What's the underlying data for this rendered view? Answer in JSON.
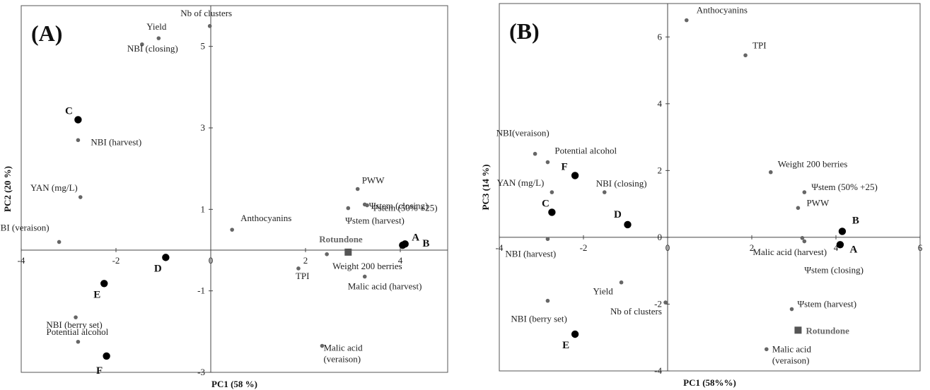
{
  "chart_data": [
    {
      "panel": "(A)",
      "type": "scatter",
      "xlabel": "PC1 (58 %)",
      "ylabel": "PC2 (20 %)",
      "xlim": [
        -4,
        5
      ],
      "ylim": [
        -3,
        6
      ],
      "xticks": [
        {
          "v": -4,
          "t": "-4"
        },
        {
          "v": -2,
          "t": "-2"
        },
        {
          "v": 0,
          "t": "0"
        },
        {
          "v": 2,
          "t": "2"
        },
        {
          "v": 4,
          "t": "4"
        }
      ],
      "yticks": [
        {
          "v": -3,
          "t": "-3"
        },
        {
          "v": -1,
          "t": "-1"
        },
        {
          "v": 1,
          "t": "1"
        },
        {
          "v": 3,
          "t": "3"
        },
        {
          "v": 5,
          "t": "5"
        }
      ],
      "variables": [
        {
          "name": "Nb of clusters",
          "x": -0.02,
          "y": 5.5
        },
        {
          "name": "Yield",
          "x": -1.1,
          "y": 5.2
        },
        {
          "name": "NBI (closing)",
          "x": -1.45,
          "y": 5.05
        },
        {
          "name": "NBI (harvest)",
          "x": -2.8,
          "y": 2.7
        },
        {
          "name": "YAN (mg/L)",
          "x": -2.75,
          "y": 1.3
        },
        {
          "name": "NBI (veraison)",
          "x": -3.2,
          "y": 0.2
        },
        {
          "name": "NBI (berry set)",
          "x": -2.85,
          "y": -1.65
        },
        {
          "name": "Potential alcohol",
          "x": -2.8,
          "y": -2.25
        },
        {
          "name": "Anthocyanins",
          "x": 0.45,
          "y": 0.5
        },
        {
          "name": "PWW",
          "x": 3.1,
          "y": 1.5
        },
        {
          "name": "Ψstem (closing)",
          "x": 3.25,
          "y": 1.12
        },
        {
          "name": "Ψstem (50% +25)",
          "x": 3.3,
          "y": 1.1
        },
        {
          "name": "Ψstem (harvest)",
          "x": 2.9,
          "y": 1.03
        },
        {
          "name": "Weight 200 berries",
          "x": 2.45,
          "y": -0.1
        },
        {
          "name": "TPI",
          "x": 1.85,
          "y": -0.45
        },
        {
          "name": "Malic acid (harvest)",
          "x": 3.25,
          "y": -0.65
        },
        {
          "name": "Malic acid (veraison)",
          "x": 2.35,
          "y": -2.35
        }
      ],
      "observations": [
        {
          "name": "A",
          "x": 4.1,
          "y": 0.15
        },
        {
          "name": "B",
          "x": 4.05,
          "y": 0.12
        },
        {
          "name": "C",
          "x": -2.8,
          "y": 3.2
        },
        {
          "name": "D",
          "x": -0.95,
          "y": -0.18
        },
        {
          "name": "E",
          "x": -2.25,
          "y": -0.82
        },
        {
          "name": "F",
          "x": -2.2,
          "y": -2.6
        }
      ],
      "supplementary": {
        "name": "Rotundone",
        "x": 2.9,
        "y": -0.05
      }
    },
    {
      "panel": "(B)",
      "type": "scatter",
      "xlabel": "PC1 (58%%)",
      "ylabel": "PC3 (14 %)",
      "xlim": [
        -4,
        6
      ],
      "ylim": [
        -4,
        7
      ],
      "xticks": [
        {
          "v": -4,
          "t": "-4"
        },
        {
          "v": -2,
          "t": "-2"
        },
        {
          "v": 0,
          "t": "0"
        },
        {
          "v": 2,
          "t": "2"
        },
        {
          "v": 4,
          "t": "4"
        },
        {
          "v": 6,
          "t": "6"
        }
      ],
      "yticks": [
        {
          "v": -4,
          "t": "-4"
        },
        {
          "v": -2,
          "t": "-2"
        },
        {
          "v": 0,
          "t": "0"
        },
        {
          "v": 2,
          "t": "2"
        },
        {
          "v": 4,
          "t": "4"
        },
        {
          "v": 6,
          "t": "6"
        }
      ],
      "variables": [
        {
          "name": "Anthocyanins",
          "x": 0.45,
          "y": 6.5
        },
        {
          "name": "TPI",
          "x": 1.85,
          "y": 5.45
        },
        {
          "name": "NBI(veraison)",
          "x": -3.15,
          "y": 2.5
        },
        {
          "name": "Potential alcohol",
          "x": -2.85,
          "y": 2.25
        },
        {
          "name": "YAN (mg/L)",
          "x": -2.75,
          "y": 1.35
        },
        {
          "name": "NBI (closing)",
          "x": -1.5,
          "y": 1.35
        },
        {
          "name": "NBI (harvest)",
          "x": -2.85,
          "y": -0.05
        },
        {
          "name": "Weight 200 berries",
          "x": 2.45,
          "y": 1.95
        },
        {
          "name": "Ψstem (50% +25)",
          "x": 3.25,
          "y": 1.35
        },
        {
          "name": "PWW",
          "x": 3.1,
          "y": 0.88
        },
        {
          "name": "Malic acid (harvest)",
          "x": 3.2,
          "y": -0.02
        },
        {
          "name": "Ψstem (closing)",
          "x": 3.25,
          "y": -0.12
        },
        {
          "name": "Yield",
          "x": -1.1,
          "y": -1.35
        },
        {
          "name": "Nb of clusters",
          "x": -0.05,
          "y": -1.95
        },
        {
          "name": "NBI (berry set)",
          "x": -2.85,
          "y": -1.9
        },
        {
          "name": "Ψstem (harvest)",
          "x": 2.95,
          "y": -2.15
        },
        {
          "name": "Malic acid (veraison)",
          "x": 2.35,
          "y": -3.35
        }
      ],
      "observations": [
        {
          "name": "A",
          "x": 4.1,
          "y": -0.22
        },
        {
          "name": "B",
          "x": 4.15,
          "y": 0.18
        },
        {
          "name": "C",
          "x": -2.75,
          "y": 0.75
        },
        {
          "name": "D",
          "x": -0.95,
          "y": 0.38
        },
        {
          "name": "E",
          "x": -2.2,
          "y": -2.9
        },
        {
          "name": "F",
          "x": -2.2,
          "y": 1.85
        }
      ],
      "supplementary": {
        "name": "Rotundone",
        "x": 3.1,
        "y": -2.78
      }
    }
  ]
}
